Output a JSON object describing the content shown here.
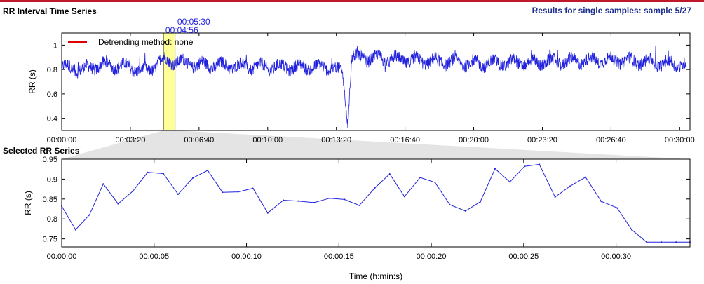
{
  "header": {
    "title": "RR Interval Time Series",
    "subtitle": "Selected RR Series",
    "sample_info": "Results for single samples: sample 5/27"
  },
  "colors": {
    "accent": "#c0182b",
    "series": "#2222dd",
    "selection": "#ffff99",
    "legend_line": "#dd0000",
    "header_text": "#1f2f8f"
  },
  "chart_data": [
    {
      "type": "line",
      "title": "RR Interval Time Series",
      "ylabel": "RR (s)",
      "xlabel": "",
      "xlim": [
        0,
        1830
      ],
      "ylim": [
        0.3,
        1.1
      ],
      "x_ticks": [
        {
          "value": 0,
          "label": "00:00:00"
        },
        {
          "value": 200,
          "label": "00:03:20"
        },
        {
          "value": 400,
          "label": "00:06:40"
        },
        {
          "value": 600,
          "label": "00:10:00"
        },
        {
          "value": 800,
          "label": "00:13:20"
        },
        {
          "value": 1000,
          "label": "00:16:40"
        },
        {
          "value": 1200,
          "label": "00:20:00"
        },
        {
          "value": 1400,
          "label": "00:23:20"
        },
        {
          "value": 1600,
          "label": "00:26:40"
        },
        {
          "value": 1800,
          "label": "00:30:00"
        }
      ],
      "y_ticks": [
        {
          "value": 0.4,
          "label": "0.4"
        },
        {
          "value": 0.6,
          "label": "0.6"
        },
        {
          "value": 0.8,
          "label": "0.8"
        },
        {
          "value": 1.0,
          "label": "1"
        }
      ],
      "legend": {
        "label": "Detrending method: none",
        "placement": "top-left"
      },
      "selection": {
        "start": 296,
        "end": 330,
        "start_label": "00:04:56",
        "end_label": "00:05:30"
      },
      "series_key_points": [
        {
          "t": 0,
          "rr": 0.82
        },
        {
          "t": 60,
          "rr": 0.8
        },
        {
          "t": 120,
          "rr": 0.84
        },
        {
          "t": 200,
          "rr": 0.82
        },
        {
          "t": 250,
          "rr": 0.78
        },
        {
          "t": 290,
          "rr": 0.88
        },
        {
          "t": 400,
          "rr": 0.84
        },
        {
          "t": 600,
          "rr": 0.82
        },
        {
          "t": 780,
          "rr": 0.82
        },
        {
          "t": 818,
          "rr": 0.78
        },
        {
          "t": 833,
          "rr": 0.34
        },
        {
          "t": 845,
          "rr": 0.9
        },
        {
          "t": 1000,
          "rr": 0.88
        },
        {
          "t": 1200,
          "rr": 0.85
        },
        {
          "t": 1400,
          "rr": 0.86
        },
        {
          "t": 1600,
          "rr": 0.88
        },
        {
          "t": 1820,
          "rr": 0.84
        }
      ]
    },
    {
      "type": "line",
      "title": "Selected RR Series",
      "xlabel": "Time (h:min:s)",
      "ylabel": "RR (s)",
      "xlim": [
        0,
        34
      ],
      "ylim": [
        0.73,
        0.95
      ],
      "x_ticks": [
        {
          "value": 0,
          "label": "00:00:00"
        },
        {
          "value": 5,
          "label": "00:00:05"
        },
        {
          "value": 10,
          "label": "00:00:10"
        },
        {
          "value": 15,
          "label": "00:00:15"
        },
        {
          "value": 20,
          "label": "00:00:20"
        },
        {
          "value": 25,
          "label": "00:00:25"
        },
        {
          "value": 30,
          "label": "00:00:30"
        }
      ],
      "y_ticks": [
        {
          "value": 0.75,
          "label": "0.75"
        },
        {
          "value": 0.8,
          "label": "0.8"
        },
        {
          "value": 0.85,
          "label": "0.85"
        },
        {
          "value": 0.9,
          "label": "0.9"
        },
        {
          "value": 0.95,
          "label": "0.95"
        }
      ],
      "x": [
        0,
        0.75,
        1.5,
        2.25,
        3.05,
        3.85,
        4.65,
        5.5,
        6.3,
        7.1,
        7.9,
        8.7,
        9.55,
        10.35,
        11.15,
        12.0,
        12.8,
        13.65,
        14.5,
        15.3,
        16.1,
        16.95,
        17.75,
        18.55,
        19.4,
        20.2,
        21.0,
        21.85,
        22.65,
        23.45,
        24.25,
        25.05,
        25.85,
        26.7,
        27.5,
        28.35,
        29.2,
        30.05,
        30.85,
        31.65,
        32.45,
        33.25,
        34.0
      ],
      "y": [
        0.832,
        0.773,
        0.81,
        0.888,
        0.838,
        0.87,
        0.917,
        0.914,
        0.862,
        0.903,
        0.922,
        0.867,
        0.868,
        0.877,
        0.815,
        0.847,
        0.845,
        0.841,
        0.852,
        0.849,
        0.834,
        0.878,
        0.913,
        0.856,
        0.904,
        0.892,
        0.836,
        0.82,
        0.843,
        0.926,
        0.893,
        0.932,
        0.937,
        0.855,
        0.882,
        0.905,
        0.844,
        0.828,
        0.773,
        0.742,
        0.742,
        0.742,
        0.742
      ]
    }
  ]
}
